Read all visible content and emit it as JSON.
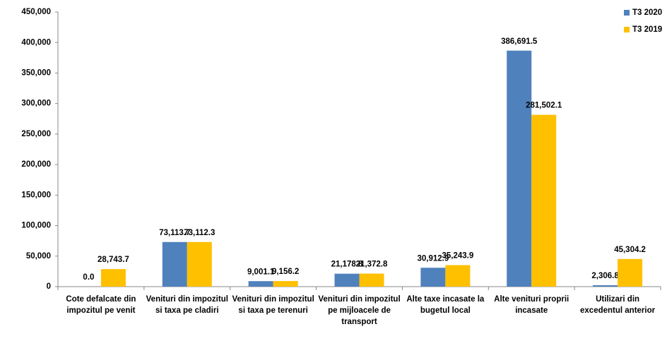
{
  "chart_data": {
    "type": "bar",
    "categories": [
      "Cote defalcate din impozitul pe venit",
      "Venituri din impozitul si taxa pe cladiri",
      "Venituri din impozitul si taxa pe terenuri",
      "Venituri din impozitul pe mijloacele de transport",
      "Alte taxe incasate la bugetul local",
      "Alte venituri proprii incasate",
      "Utilizari din excedentul anterior"
    ],
    "series": [
      {
        "name": "T3 2020",
        "color": "#4f81bd",
        "values": [
          0,
          73113.7,
          9001.1,
          21178.8,
          30912.9,
          386691.5,
          2306.8
        ],
        "value_labels": [
          "0.0",
          "73,113.7",
          "9,001.1",
          "21,178.8",
          "30,912.9",
          "386,691.5",
          "2,306.8"
        ]
      },
      {
        "name": "T3 2019",
        "color": "#ffc000",
        "values": [
          28743.7,
          73112.3,
          9156.2,
          21372.8,
          35243.9,
          281502.1,
          45304.2
        ],
        "value_labels": [
          "28,743.7",
          "73,112.3",
          "9,156.2",
          "21,372.8",
          "35,243.9",
          "281,502.1",
          "45,304.2"
        ]
      }
    ],
    "ylim": [
      0,
      450000
    ],
    "yticks": [
      {
        "value": 0,
        "label": "0"
      },
      {
        "value": 50000,
        "label": "50,000"
      },
      {
        "value": 100000,
        "label": "100,000"
      },
      {
        "value": 150000,
        "label": "150,000"
      },
      {
        "value": 200000,
        "label": "200,000"
      },
      {
        "value": 250000,
        "label": "250,000"
      },
      {
        "value": 300000,
        "label": "300,000"
      },
      {
        "value": 350000,
        "label": "350,000"
      },
      {
        "value": 400000,
        "label": "400,000"
      },
      {
        "value": 450000,
        "label": "450,000"
      }
    ],
    "grid": false,
    "legend": "top-right"
  }
}
